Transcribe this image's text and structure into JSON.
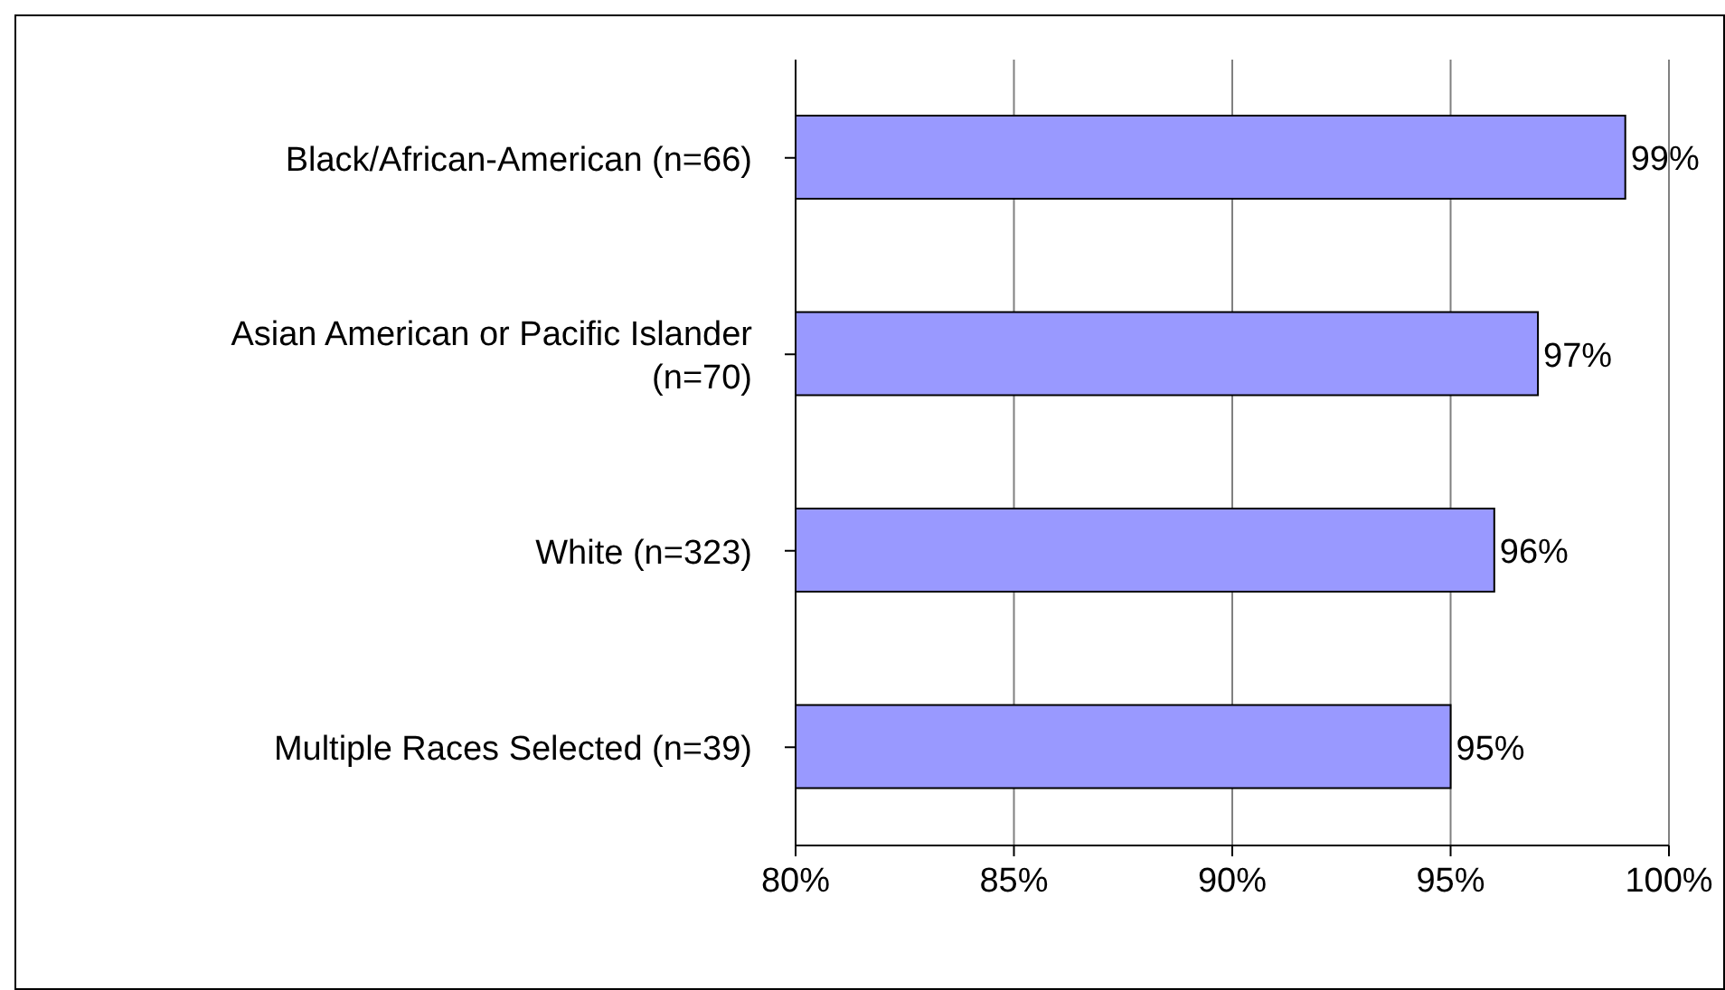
{
  "chart_data": {
    "type": "bar",
    "orientation": "horizontal",
    "categories": [
      "Black/African-American (n=66)",
      "Asian American or Pacific Islander (n=70)",
      "White (n=323)",
      "Multiple Races Selected (n=39)"
    ],
    "values": [
      99,
      97,
      96,
      95
    ],
    "value_labels": [
      "99%",
      "97%",
      "96%",
      "95%"
    ],
    "color": "#9999ff",
    "xlim": [
      80,
      100
    ],
    "xticks": [
      {
        "value": 80,
        "label": "80%"
      },
      {
        "value": 85,
        "label": "85%"
      },
      {
        "value": 90,
        "label": "90%"
      },
      {
        "value": 95,
        "label": "95%"
      },
      {
        "value": 100,
        "label": "100%"
      }
    ],
    "grid": "x",
    "legend": false
  }
}
